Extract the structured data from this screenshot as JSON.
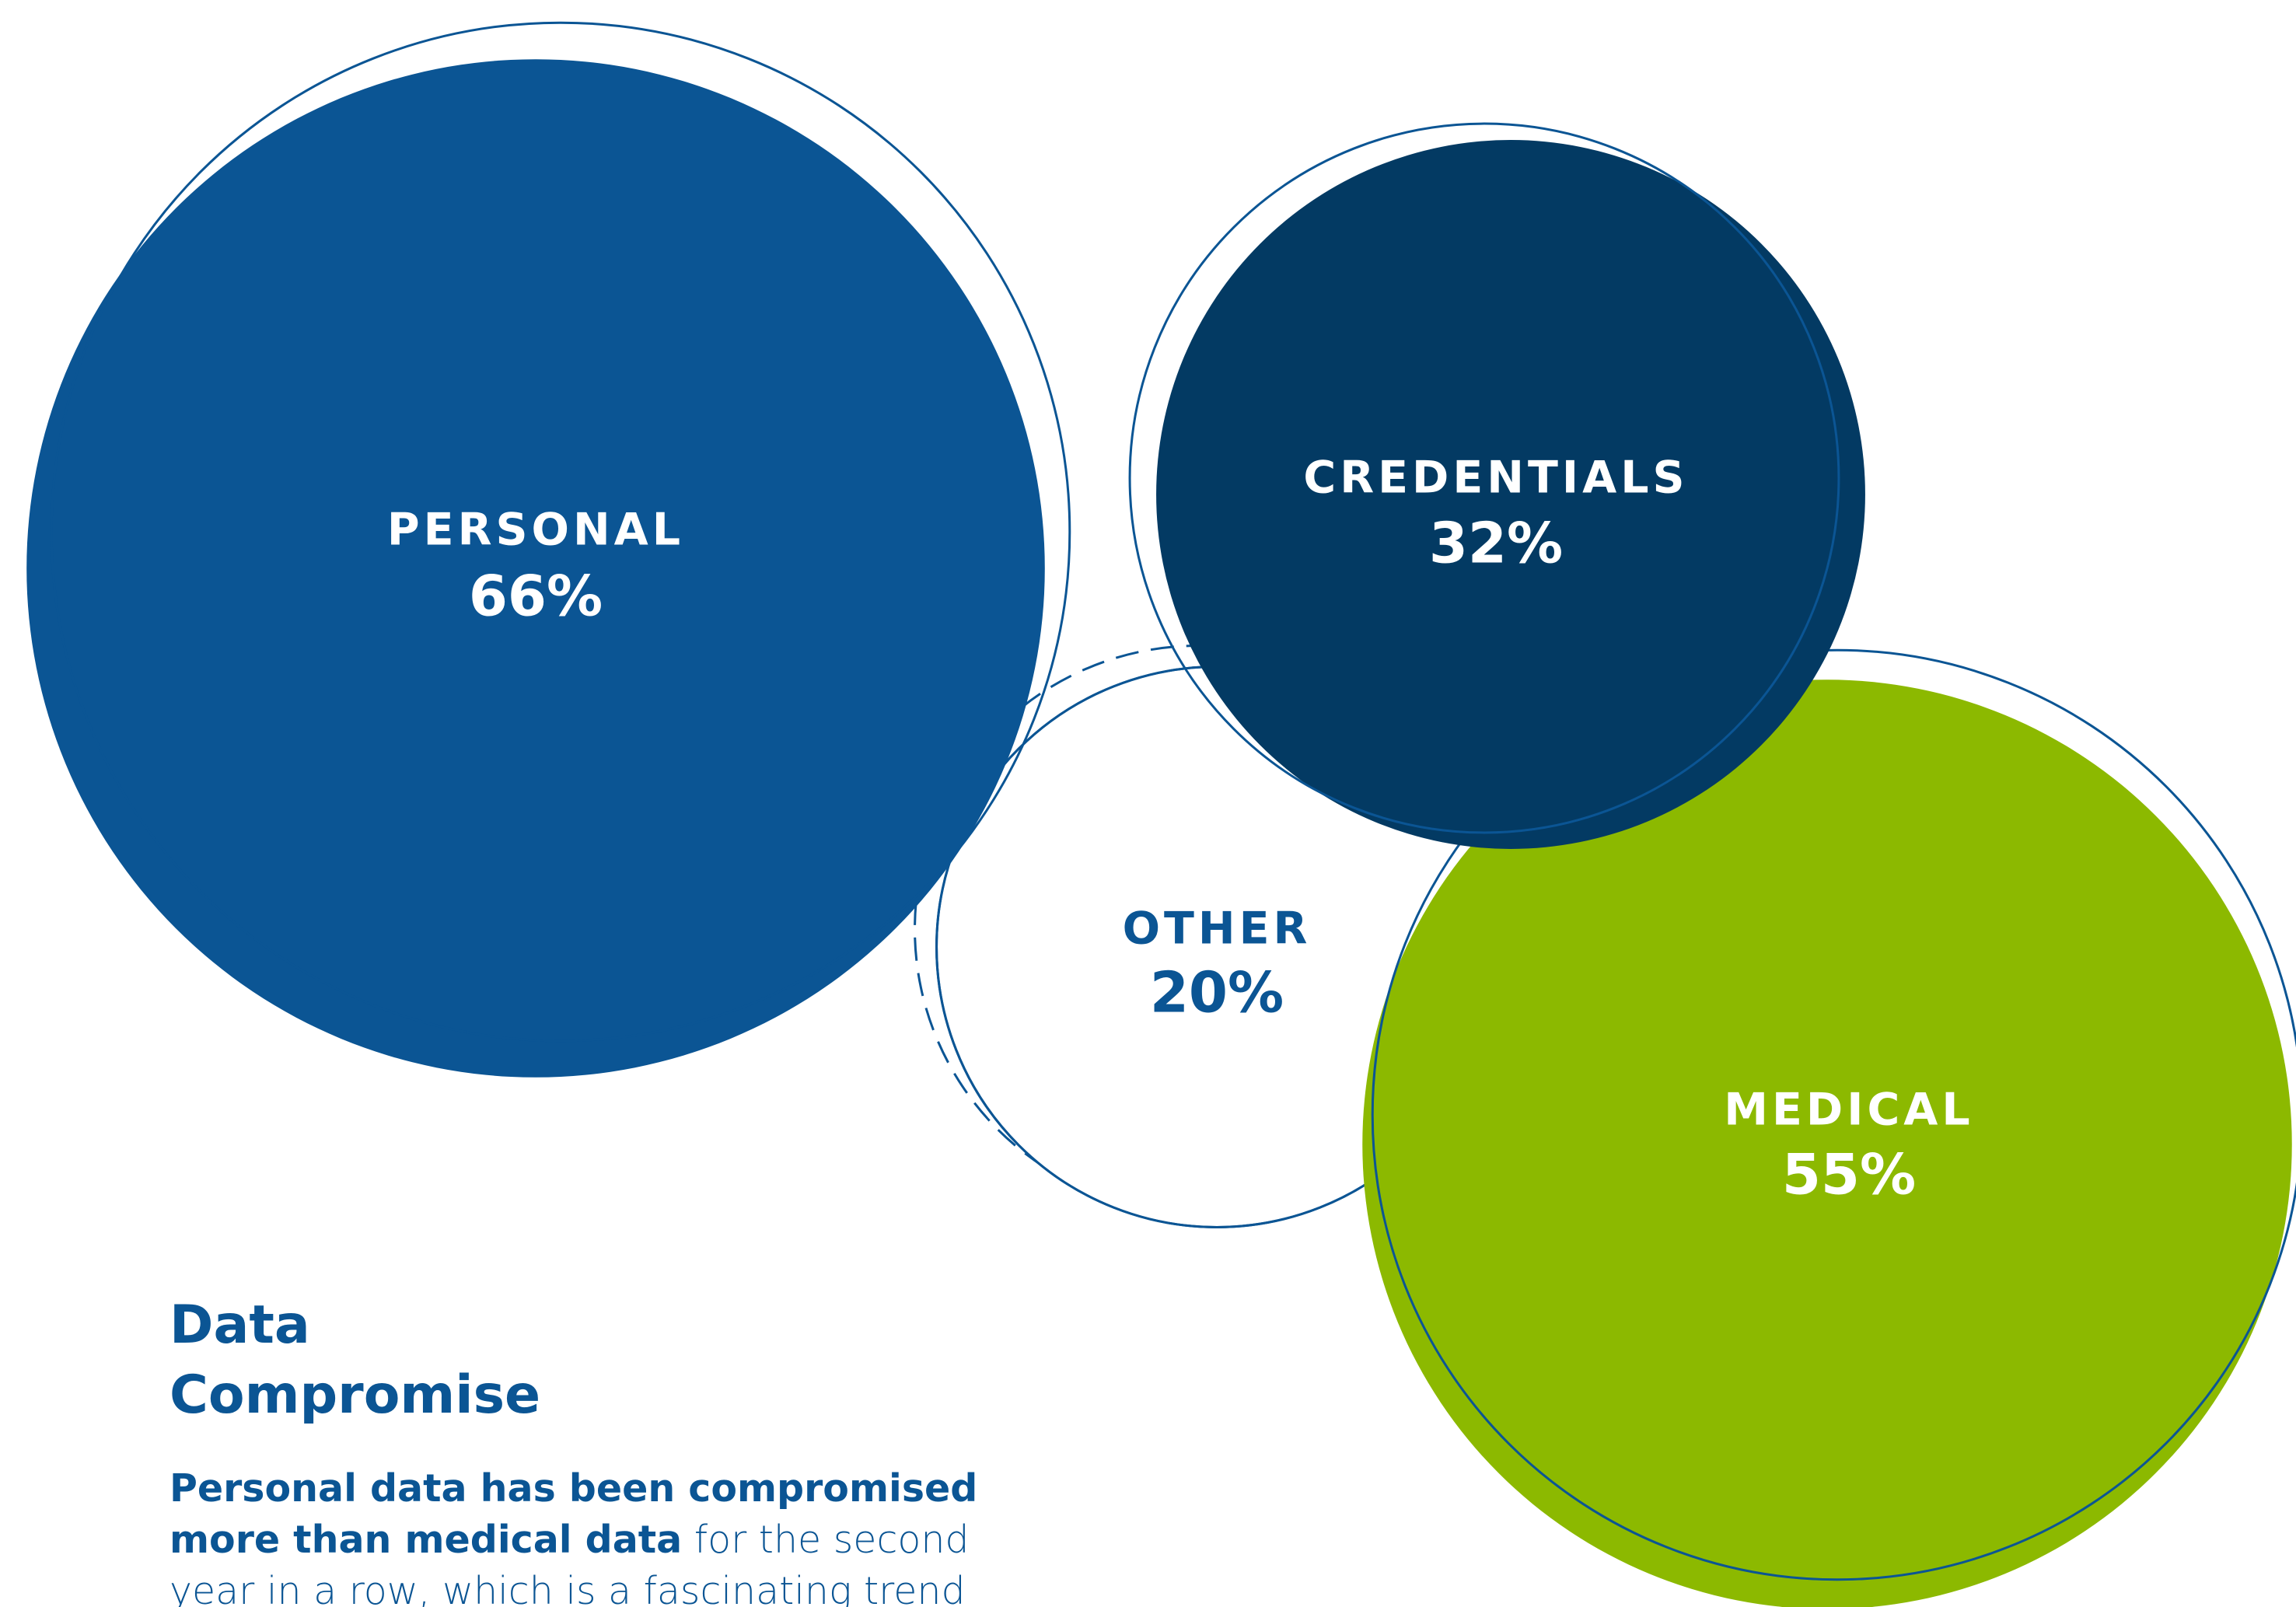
{
  "chart_data": {
    "type": "bubble",
    "categories": [
      "PERSONAL",
      "CREDENTIALS",
      "OTHER",
      "MEDICAL"
    ],
    "values": [
      66,
      32,
      20,
      55
    ],
    "value_labels": [
      "66%",
      "32%",
      "20%",
      "55%"
    ],
    "colors": [
      "#0b5594",
      "#033a63",
      "#ffffff",
      "#8cb900"
    ]
  },
  "text": {
    "title": "Data Compromise",
    "body_bold": "Personal data has been compromised more than medical data",
    "body": " for the second year in a row, which is a fascinating trend"
  }
}
